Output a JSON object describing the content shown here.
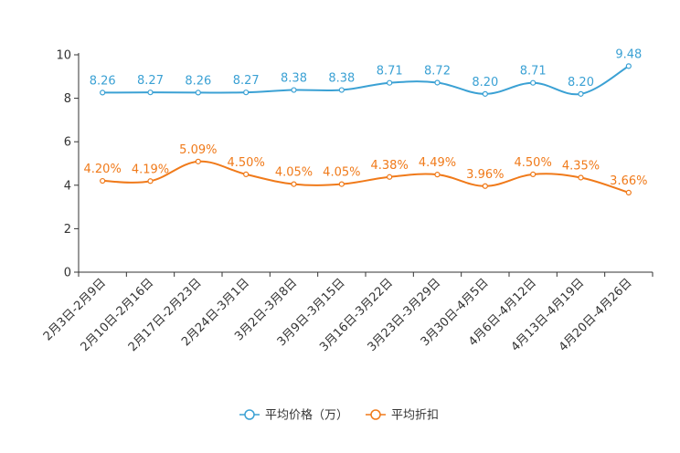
{
  "chart_data": {
    "type": "line",
    "categories": [
      "2月3日-2月9日",
      "2月10日-2月16日",
      "2月17日-2月23日",
      "2月24日-3月1日",
      "3月2日-3月8日",
      "3月9日-3月15日",
      "3月16日-3月22日",
      "3月23日-3月29日",
      "3月30日-4月5日",
      "4月6日-4月12日",
      "4月13日-4月19日",
      "4月20日-4月26日"
    ],
    "series": [
      {
        "name": "平均价格（万）",
        "color": "#3ba1d4",
        "values": [
          8.26,
          8.27,
          8.26,
          8.27,
          8.38,
          8.38,
          8.71,
          8.72,
          8.2,
          8.71,
          8.2,
          9.48
        ],
        "labels": [
          "8.26",
          "8.27",
          "8.26",
          "8.27",
          "8.38",
          "8.38",
          "8.71",
          "8.72",
          "8.20",
          "8.71",
          "8.20",
          "9.48"
        ]
      },
      {
        "name": "平均折扣",
        "color": "#f07a1a",
        "values": [
          4.2,
          4.19,
          5.09,
          4.5,
          4.05,
          4.05,
          4.38,
          4.49,
          3.96,
          4.5,
          4.35,
          3.66
        ],
        "labels": [
          "4.20%",
          "4.19%",
          "5.09%",
          "4.50%",
          "4.05%",
          "4.05%",
          "4.38%",
          "4.49%",
          "3.96%",
          "4.50%",
          "4.35%",
          "3.66%"
        ]
      }
    ],
    "ylim": [
      0,
      10
    ],
    "yticks": [
      0,
      2,
      4,
      6,
      8,
      10
    ],
    "ytick_labels": [
      "0",
      "2",
      "4",
      "6",
      "8",
      "10"
    ],
    "legend_position": "bottom-center",
    "grid": false
  }
}
